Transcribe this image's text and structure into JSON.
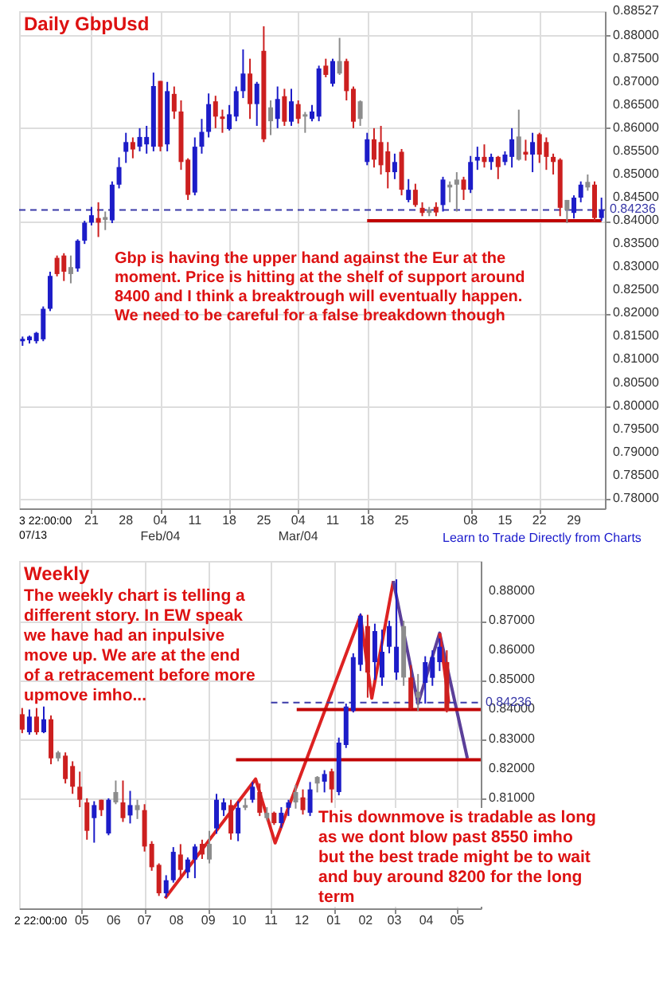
{
  "chart_data": [
    {
      "type": "candlestick",
      "title": "Daily GbpUsd",
      "categories": [
        null,
        null,
        null,
        null,
        null,
        null,
        null,
        null,
        null,
        null,
        "21",
        null,
        null,
        null,
        null,
        "28",
        null,
        null,
        null,
        null,
        "04\nFeb/04",
        null,
        null,
        null,
        null,
        "11",
        null,
        null,
        null,
        null,
        "18",
        null,
        null,
        null,
        null,
        "25",
        null,
        null,
        null,
        null,
        "04\nMar/04",
        null,
        null,
        null,
        null,
        "11",
        null,
        null,
        null,
        null,
        "18",
        null,
        null,
        null,
        null,
        "25",
        null,
        null,
        null,
        null,
        null,
        null,
        null,
        null,
        null,
        "08",
        null,
        null,
        null,
        null,
        "15",
        null,
        null,
        null,
        null,
        "22",
        null,
        null,
        null,
        null,
        "29",
        null,
        null,
        null,
        null
      ],
      "ohlc": [
        [
          0.814,
          0.815,
          0.813,
          0.8145
        ],
        [
          0.8142,
          0.8152,
          0.8135,
          0.815
        ],
        [
          0.814,
          0.816,
          0.8135,
          0.8158
        ],
        [
          0.8144,
          0.8215,
          0.814,
          0.821
        ],
        [
          0.821,
          0.829,
          0.8205,
          0.8281
        ],
        [
          0.832,
          0.8325,
          0.828,
          0.8285
        ],
        [
          0.8325,
          0.833,
          0.827,
          0.829
        ],
        [
          0.8285,
          0.8325,
          0.8265,
          0.83
        ],
        [
          0.8297,
          0.836,
          0.829,
          0.8357
        ],
        [
          0.8357,
          0.84,
          0.835,
          0.8396
        ],
        [
          0.8396,
          0.843,
          0.839,
          0.8412
        ],
        [
          0.8406,
          0.844,
          0.8365,
          0.8396
        ],
        [
          0.8402,
          0.842,
          0.838,
          0.8408
        ],
        [
          0.8401,
          0.8485,
          0.8395,
          0.8478
        ],
        [
          0.8478,
          0.8537,
          0.847,
          0.8516
        ],
        [
          0.8549,
          0.859,
          0.8525,
          0.857
        ],
        [
          0.857,
          0.858,
          0.8535,
          0.8554
        ],
        [
          0.856,
          0.86,
          0.855,
          0.8581
        ],
        [
          0.8565,
          0.8605,
          0.8545,
          0.8581
        ],
        [
          0.856,
          0.872,
          0.855,
          0.8691
        ],
        [
          0.8702,
          0.8702,
          0.855,
          0.856
        ],
        [
          0.8565,
          0.87,
          0.855,
          0.868
        ],
        [
          0.8674,
          0.869,
          0.862,
          0.8636
        ],
        [
          0.8636,
          0.866,
          0.851,
          0.8527
        ],
        [
          0.8532,
          0.8535,
          0.8445,
          0.8456
        ],
        [
          0.8461,
          0.858,
          0.8455,
          0.856
        ],
        [
          0.856,
          0.862,
          0.8545,
          0.8592
        ],
        [
          0.8592,
          0.8675,
          0.858,
          0.8652
        ],
        [
          0.8658,
          0.867,
          0.86,
          0.8625
        ],
        [
          0.8625,
          0.864,
          0.859,
          0.862
        ],
        [
          0.8598,
          0.865,
          0.8595,
          0.863
        ],
        [
          0.8625,
          0.869,
          0.8615,
          0.868
        ],
        [
          0.868,
          0.877,
          0.8665,
          0.8718
        ],
        [
          0.8718,
          0.875,
          0.862,
          0.8652
        ],
        [
          0.8652,
          0.87,
          0.8605,
          0.8696
        ],
        [
          0.8767,
          0.882,
          0.857,
          0.8576
        ],
        [
          0.8645,
          0.866,
          0.8585,
          0.8615
        ],
        [
          0.862,
          0.869,
          0.86,
          0.8663
        ],
        [
          0.8669,
          0.8685,
          0.8605,
          0.8614
        ],
        [
          0.8614,
          0.8685,
          0.8605,
          0.8658
        ],
        [
          0.8652,
          0.866,
          0.861,
          0.862
        ],
        [
          0.863,
          0.8635,
          0.859,
          0.8625
        ],
        [
          0.862,
          0.865,
          0.8615,
          0.8636
        ],
        [
          0.8625,
          0.8735,
          0.8615,
          0.8729
        ],
        [
          0.8735,
          0.875,
          0.871,
          0.8715
        ],
        [
          0.8696,
          0.875,
          0.869,
          0.8745
        ],
        [
          0.8745,
          0.8795,
          0.8715,
          0.8718
        ],
        [
          0.8745,
          0.875,
          0.866,
          0.868
        ],
        [
          0.8685,
          0.869,
          0.86,
          0.8614
        ],
        [
          0.8658,
          0.866,
          0.8605,
          0.862
        ],
        [
          0.8527,
          0.859,
          0.852,
          0.8576
        ],
        [
          0.8576,
          0.86,
          0.8515,
          0.8532
        ],
        [
          0.857,
          0.8605,
          0.85,
          0.852
        ],
        [
          0.855,
          0.857,
          0.847,
          0.8505
        ],
        [
          0.8505,
          0.8545,
          0.849,
          0.8527
        ],
        [
          0.8549,
          0.8555,
          0.8455,
          0.8467
        ],
        [
          0.8445,
          0.849,
          0.844,
          0.8467
        ],
        [
          0.8467,
          0.848,
          0.843,
          0.8434
        ],
        [
          0.8428,
          0.844,
          0.841,
          0.8417
        ],
        [
          0.8417,
          0.843,
          0.841,
          0.8425
        ],
        [
          0.843,
          0.844,
          0.841,
          0.8418
        ],
        [
          0.8434,
          0.8495,
          0.842,
          0.8489
        ],
        [
          0.8478,
          0.8485,
          0.844,
          0.8472
        ],
        [
          0.8489,
          0.8505,
          0.842,
          0.8478
        ],
        [
          0.8489,
          0.8495,
          0.8445,
          0.8467
        ],
        [
          0.8467,
          0.854,
          0.846,
          0.8527
        ],
        [
          0.853,
          0.856,
          0.851,
          0.8538
        ],
        [
          0.8538,
          0.8565,
          0.8515,
          0.8527
        ],
        [
          0.8527,
          0.8545,
          0.851,
          0.8538
        ],
        [
          0.8538,
          0.854,
          0.849,
          0.8516
        ],
        [
          0.8527,
          0.855,
          0.852,
          0.8543
        ],
        [
          0.8538,
          0.86,
          0.8515,
          0.8576
        ],
        [
          0.8582,
          0.864,
          0.853,
          0.8532
        ],
        [
          0.8549,
          0.8575,
          0.853,
          0.8543
        ],
        [
          0.8543,
          0.859,
          0.8505,
          0.857
        ],
        [
          0.8587,
          0.859,
          0.8525,
          0.8543
        ],
        [
          0.857,
          0.858,
          0.851,
          0.8538
        ],
        [
          0.8538,
          0.8545,
          0.85,
          0.8527
        ],
        [
          0.8532,
          0.8535,
          0.841,
          0.8428
        ],
        [
          0.8445,
          0.8445,
          0.8395,
          0.8423
        ],
        [
          0.8417,
          0.8455,
          0.8405,
          0.845
        ],
        [
          0.845,
          0.8485,
          0.844,
          0.8478
        ],
        [
          0.8484,
          0.85,
          0.8465,
          0.8472
        ],
        [
          0.8478,
          0.8485,
          0.84,
          0.8406
        ],
        [
          0.8406,
          0.845,
          0.84,
          0.8423
        ]
      ],
      "colors": [
        "#1c1cc8",
        "#1c1cc8",
        "#1c1cc8",
        "#1c1cc8",
        "#1c1cc8",
        "#cc1f1f",
        "#cc1f1f",
        "#8c8c8c",
        "#1c1cc8",
        "#1c1cc8",
        "#1c1cc8",
        "#cc1f1f",
        "#8c8c8c",
        "#1c1cc8",
        "#1c1cc8",
        "#1c1cc8",
        "#cc1f1f",
        "#1c1cc8",
        "#1c1cc8",
        "#1c1cc8",
        "#cc1f1f",
        "#1c1cc8",
        "#cc1f1f",
        "#cc1f1f",
        "#cc1f1f",
        "#1c1cc8",
        "#1c1cc8",
        "#1c1cc8",
        "#cc1f1f",
        "#cc1f1f",
        "#1c1cc8",
        "#1c1cc8",
        "#1c1cc8",
        "#cc1f1f",
        "#1c1cc8",
        "#cc1f1f",
        "#8c8c8c",
        "#1c1cc8",
        "#cc1f1f",
        "#1c1cc8",
        "#cc1f1f",
        "#8c8c8c",
        "#1c1cc8",
        "#1c1cc8",
        "#cc1f1f",
        "#1c1cc8",
        "#8c8c8c",
        "#cc1f1f",
        "#cc1f1f",
        "#8c8c8c",
        "#1c1cc8",
        "#cc1f1f",
        "#cc1f1f",
        "#cc1f1f",
        "#1c1cc8",
        "#cc1f1f",
        "#1c1cc8",
        "#cc1f1f",
        "#cc1f1f",
        "#8c8c8c",
        "#cc1f1f",
        "#1c1cc8",
        "#8c8c8c",
        "#8c8c8c",
        "#cc1f1f",
        "#1c1cc8",
        "#1c1cc8",
        "#cc1f1f",
        "#1c1cc8",
        "#cc1f1f",
        "#1c1cc8",
        "#1c1cc8",
        "#8c8c8c",
        "#cc1f1f",
        "#1c1cc8",
        "#cc1f1f",
        "#cc1f1f",
        "#cc1f1f",
        "#cc1f1f",
        "#8c8c8c",
        "#1c1cc8",
        "#1c1cc8",
        "#8c8c8c",
        "#cc1f1f",
        "#1c1cc8"
      ],
      "ylim": [
        0.7779,
        0.88527
      ],
      "yticks": [
        {
          "value": 0.78,
          "label": "0.78000"
        },
        {
          "value": 0.785,
          "label": "0.78500"
        },
        {
          "value": 0.79,
          "label": "0.79000"
        },
        {
          "value": 0.795,
          "label": "0.79500"
        },
        {
          "value": 0.8,
          "label": "0.80000"
        },
        {
          "value": 0.805,
          "label": "0.80500"
        },
        {
          "value": 0.81,
          "label": "0.81000"
        },
        {
          "value": 0.815,
          "label": "0.81500"
        },
        {
          "value": 0.82,
          "label": "0.82000"
        },
        {
          "value": 0.825,
          "label": "0.82500"
        },
        {
          "value": 0.83,
          "label": "0.83000"
        },
        {
          "value": 0.835,
          "label": "0.83500"
        },
        {
          "value": 0.84,
          "label": "0.84000"
        },
        {
          "value": 0.845,
          "label": "0.84500"
        },
        {
          "value": 0.85,
          "label": "0.85000"
        },
        {
          "value": 0.855,
          "label": "0.85500"
        },
        {
          "value": 0.86,
          "label": "0.86000"
        },
        {
          "value": 0.865,
          "label": "0.86500"
        },
        {
          "value": 0.87,
          "label": "0.87000"
        },
        {
          "value": 0.875,
          "label": "0.87500"
        },
        {
          "value": 0.88,
          "label": "0.88000"
        },
        {
          "value": 0.88527,
          "label": "0.88527"
        }
      ],
      "grid": true,
      "ref_lines": [
        {
          "axis": "y",
          "value": 0.84236,
          "label": "0.84236",
          "color": "#3a3aa8",
          "line_style": "dashed"
        }
      ],
      "series": [
        {
          "type": "line",
          "color": "#c00000",
          "values": [
            null,
            null,
            null,
            null,
            null,
            null,
            null,
            null,
            null,
            null,
            null,
            null,
            null,
            null,
            null,
            null,
            null,
            null,
            null,
            null,
            null,
            null,
            null,
            null,
            null,
            null,
            null,
            null,
            null,
            null,
            null,
            null,
            null,
            null,
            null,
            null,
            null,
            null,
            null,
            null,
            null,
            null,
            null,
            null,
            null,
            null,
            null,
            null,
            null,
            null,
            0.84,
            0.84,
            0.84,
            0.84,
            0.84,
            0.84,
            0.84,
            0.84,
            0.84,
            0.84,
            0.84,
            0.84,
            0.84,
            0.84,
            0.84,
            0.84,
            0.84,
            0.84,
            0.84,
            0.84,
            0.84,
            0.84,
            0.84,
            0.84,
            0.84,
            0.84,
            0.84,
            0.84,
            0.84,
            0.84,
            0.84,
            0.84,
            0.84,
            0.84,
            0.84
          ]
        }
      ],
      "annotations": [
        "Gbp is having the upper hand against the Eur at the\nmoment. Price is hitting at the shelf of support around\n8400 and I think a breaktrough will eventually happen.\nWe need to be careful for a false breakdown though",
        "Learn to Trade Directly from Charts",
        "3 22:00:00",
        "07/13"
      ]
    },
    {
      "type": "candlestick",
      "title": "Weekly",
      "x": [
        "2012-03-04",
        "2012-03-11",
        "2012-03-18",
        "2012-03-25",
        "2012-04-01",
        "2012-04-08",
        "2012-04-15",
        "2012-04-22",
        "2012-04-29",
        "2012-05-06",
        "2012-05-13",
        "2012-05-20",
        "2012-05-27",
        "2012-06-03",
        "2012-06-10",
        "2012-06-17",
        "2012-06-24",
        "2012-07-01",
        "2012-07-08",
        "2012-07-15",
        "2012-07-22",
        "2012-07-29",
        "2012-08-05",
        "2012-08-12",
        "2012-08-19",
        "2012-08-26",
        "2012-09-02",
        "2012-09-09",
        "2012-09-16",
        "2012-09-23",
        "2012-09-30",
        "2012-10-07",
        "2012-10-14",
        "2012-10-21",
        "2012-10-28",
        "2012-11-04",
        "2012-11-11",
        "2012-11-18",
        "2012-11-25",
        "2012-12-02",
        "2012-12-09",
        "2012-12-16",
        "2012-12-23",
        "2012-12-30",
        "2013-01-06",
        "2013-01-13",
        "2013-01-20",
        "2013-01-27",
        "2013-02-03",
        "2013-02-10",
        "2013-02-17",
        "2013-02-24",
        "2013-03-03",
        "2013-03-10",
        "2013-03-17",
        "2013-03-24",
        "2013-03-31",
        "2013-04-07",
        "2013-04-14",
        "2013-04-21"
      ],
      "ohlc": [
        [
          0.8384,
          0.8405,
          0.832,
          0.8332
        ],
        [
          0.8323,
          0.84,
          0.8315,
          0.8376
        ],
        [
          0.8376,
          0.8405,
          0.8315,
          0.8323
        ],
        [
          0.8323,
          0.841,
          0.832,
          0.8367
        ],
        [
          0.8367,
          0.838,
          0.8215,
          0.8235
        ],
        [
          0.8255,
          0.826,
          0.8225,
          0.8235
        ],
        [
          0.8244,
          0.8255,
          0.815,
          0.8165
        ],
        [
          0.8209,
          0.8225,
          0.8115,
          0.8139
        ],
        [
          0.8139,
          0.819,
          0.807,
          0.8095
        ],
        [
          0.8086,
          0.81,
          0.796,
          0.799
        ],
        [
          0.8033,
          0.809,
          0.795,
          0.8077
        ],
        [
          0.8095,
          0.8095,
          0.804,
          0.806
        ],
        [
          0.7981,
          0.81,
          0.7975,
          0.8095
        ],
        [
          0.8121,
          0.816,
          0.808,
          0.8086
        ],
        [
          0.8086,
          0.816,
          0.802,
          0.8033
        ],
        [
          0.8042,
          0.8125,
          0.8015,
          0.8077
        ],
        [
          0.8077,
          0.8095,
          0.803,
          0.806
        ],
        [
          0.806,
          0.808,
          0.792,
          0.7937
        ],
        [
          0.7946,
          0.7955,
          0.7855,
          0.7867
        ],
        [
          0.7875,
          0.788,
          0.777,
          0.7779
        ],
        [
          0.7779,
          0.784,
          0.7765,
          0.7823
        ],
        [
          0.7823,
          0.7935,
          0.7815,
          0.7919
        ],
        [
          0.791,
          0.7945,
          0.7835,
          0.7858
        ],
        [
          0.785,
          0.79,
          0.783,
          0.7893
        ],
        [
          0.7893,
          0.7945,
          0.783,
          0.7937
        ],
        [
          0.7946,
          0.796,
          0.7895,
          0.791
        ],
        [
          0.7946,
          0.799,
          0.788,
          0.7893
        ],
        [
          0.7998,
          0.8115,
          0.798,
          0.8095
        ],
        [
          0.806,
          0.81,
          0.804,
          0.8086
        ],
        [
          0.8077,
          0.8095,
          0.796,
          0.7981
        ],
        [
          0.7981,
          0.809,
          0.7955,
          0.8068
        ],
        [
          0.8077,
          0.81,
          0.806,
          0.8068
        ],
        [
          0.8095,
          0.8155,
          0.8085,
          0.8139
        ],
        [
          0.8121,
          0.815,
          0.804,
          0.8051
        ],
        [
          0.8051,
          0.807,
          0.8025,
          0.8033
        ],
        [
          0.8051,
          0.8055,
          0.801,
          0.8016
        ],
        [
          0.8016,
          0.807,
          0.8,
          0.8051
        ],
        [
          0.8068,
          0.8095,
          0.804,
          0.8086
        ],
        [
          0.8121,
          0.8145,
          0.8065,
          0.8086
        ],
        [
          0.8103,
          0.813,
          0.8045,
          0.806
        ],
        [
          0.8051,
          0.8155,
          0.804,
          0.813
        ],
        [
          0.815,
          0.8175,
          0.812,
          0.8172
        ],
        [
          0.8156,
          0.8195,
          0.812,
          0.8182
        ],
        [
          0.8191,
          0.82,
          0.8085,
          0.813
        ],
        [
          0.8121,
          0.8305,
          0.811,
          0.8288
        ],
        [
          0.828,
          0.842,
          0.827,
          0.841
        ],
        [
          0.8395,
          0.859,
          0.839,
          0.8577
        ],
        [
          0.8551,
          0.8725,
          0.853,
          0.8717
        ],
        [
          0.8682,
          0.872,
          0.844,
          0.8525
        ],
        [
          0.856,
          0.869,
          0.85,
          0.8665
        ],
        [
          0.8508,
          0.867,
          0.848,
          0.8595
        ],
        [
          0.8612,
          0.87,
          0.859,
          0.8682
        ],
        [
          0.8525,
          0.884,
          0.85,
          0.8612
        ],
        [
          0.8682,
          0.87,
          0.848,
          0.8508
        ],
        [
          0.8508,
          0.855,
          0.84,
          0.8404
        ],
        [
          0.844,
          0.852,
          0.8395,
          0.846
        ],
        [
          0.849,
          0.858,
          0.842,
          0.856
        ],
        [
          0.8507,
          0.86,
          0.848,
          0.8577
        ],
        [
          0.856,
          0.864,
          0.853,
          0.8612
        ],
        [
          0.856,
          0.86,
          0.839,
          0.8395
        ]
      ],
      "colors": [
        "#cc1f1f",
        "#1c1cc8",
        "#cc1f1f",
        "#1c1cc8",
        "#cc1f1f",
        "#8c8c8c",
        "#cc1f1f",
        "#cc1f1f",
        "#cc1f1f",
        "#cc1f1f",
        "#1c1cc8",
        "#cc1f1f",
        "#1c1cc8",
        "#8c8c8c",
        "#cc1f1f",
        "#1c1cc8",
        "#8c8c8c",
        "#cc1f1f",
        "#cc1f1f",
        "#cc1f1f",
        "#1c1cc8",
        "#1c1cc8",
        "#cc1f1f",
        "#1c1cc8",
        "#1c1cc8",
        "#cc1f1f",
        "#8c8c8c",
        "#1c1cc8",
        "#1c1cc8",
        "#cc1f1f",
        "#1c1cc8",
        "#8c8c8c",
        "#1c1cc8",
        "#cc1f1f",
        "#8c8c8c",
        "#cc1f1f",
        "#1c1cc8",
        "#1c1cc8",
        "#8c8c8c",
        "#cc1f1f",
        "#1c1cc8",
        "#8c8c8c",
        "#1c1cc8",
        "#cc1f1f",
        "#1c1cc8",
        "#1c1cc8",
        "#1c1cc8",
        "#1c1cc8",
        "#cc1f1f",
        "#1c1cc8",
        "#1c1cc8",
        "#1c1cc8",
        "#1c1cc8",
        "#8c8c8c",
        "#cc1f1f",
        "#8c8c8c",
        "#1c1cc8",
        "#1c1cc8",
        "#1c1cc8",
        "#cc1f1f"
      ],
      "xlim": [
        "2012-03-01",
        "2013-05-24"
      ],
      "xticks": [
        {
          "value": "2012-05-01",
          "label": "05"
        },
        {
          "value": "2012-06-01",
          "label": "06"
        },
        {
          "value": "2012-07-01",
          "label": "07"
        },
        {
          "value": "2012-08-01",
          "label": "08"
        },
        {
          "value": "2012-09-01",
          "label": "09"
        },
        {
          "value": "2012-10-01",
          "label": "10"
        },
        {
          "value": "2012-11-01",
          "label": "11"
        },
        {
          "value": "2012-12-01",
          "label": "12"
        },
        {
          "value": "2013-01-01",
          "label": "01"
        },
        {
          "value": "2013-02-01",
          "label": "02"
        },
        {
          "value": "2013-03-01",
          "label": "03"
        },
        {
          "value": "2013-04-01",
          "label": "04"
        },
        {
          "value": "2013-05-01",
          "label": "05"
        }
      ],
      "ylim": [
        0.7728,
        0.8902
      ],
      "yticks": [
        {
          "value": 0.81,
          "label": "0.81000"
        },
        {
          "value": 0.82,
          "label": "0.82000"
        },
        {
          "value": 0.83,
          "label": "0.83000"
        },
        {
          "value": 0.84,
          "label": "0.84000"
        },
        {
          "value": 0.85,
          "label": "0.85000"
        },
        {
          "value": 0.86,
          "label": "0.86000"
        },
        {
          "value": 0.87,
          "label": "0.87000"
        },
        {
          "value": 0.88,
          "label": "0.88000"
        }
      ],
      "grid": true,
      "series": [
        {
          "type": "line",
          "color": "#dd2222",
          "x": [
            "2012-07-21",
            "2012-10-17",
            "2012-11-05",
            "2013-01-27",
            "2013-02-07",
            "2013-02-28"
          ],
          "values": [
            0.7762,
            0.8165,
            0.7949,
            0.8717,
            0.8438,
            0.8834
          ]
        },
        {
          "type": "line",
          "color": "#5b3f99",
          "x": [
            "2013-02-28",
            "2013-03-24",
            "2013-04-14",
            "2013-05-11"
          ],
          "values": [
            0.8834,
            0.842,
            0.8658,
            0.8235
          ]
        },
        {
          "type": "line",
          "color": "#dd2222",
          "x": [
            "2013-04-14",
            "2013-04-23"
          ],
          "values": [
            0.8658,
            0.842
          ]
        },
        {
          "type": "line",
          "color": "#c00000",
          "x": [
            "2012-11-26",
            "2013-05-24"
          ],
          "values": [
            0.84,
            0.84
          ]
        },
        {
          "type": "line",
          "color": "#c00000",
          "x": [
            "2012-09-28",
            "2013-05-24"
          ],
          "values": [
            0.823,
            0.823
          ]
        },
        {
          "type": "line",
          "color": "#3a3aa8",
          "line_style": "dashed",
          "x": [
            "2012-11-01",
            "2013-05-24"
          ],
          "values": [
            0.84236,
            0.84236
          ]
        }
      ],
      "annotations": [
        "The weekly chart is telling a\ndifferent story. In EW speak\nwe have had an inpulsive\nmove up. We are at the end\nof a retracement  before more\nupmove imho...",
        "This downmove is tradable as long\nas we dont blow past 8550 imho\nbut the best trade might be to wait\nand buy around 8200 for the long\nterm",
        "2 22:00:00",
        "0.84236"
      ]
    }
  ]
}
